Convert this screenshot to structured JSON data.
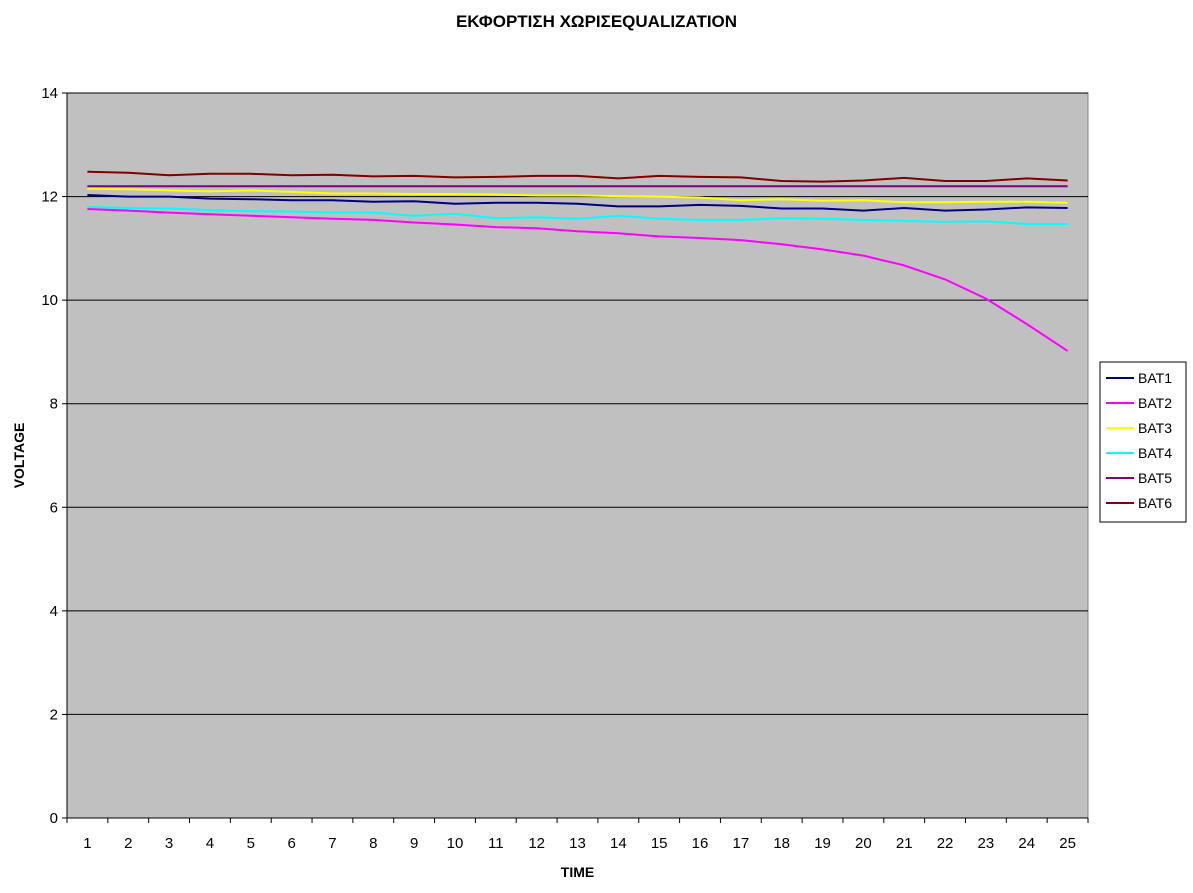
{
  "chart_data": {
    "type": "line",
    "title": "ΕΚΦΟΡΤΙΣΗ ΧΩΡΙΣEQUALIZATION",
    "xlabel": "TIME",
    "ylabel": "VOLTAGE",
    "ylim": [
      0,
      14
    ],
    "yticks": [
      0,
      2,
      4,
      6,
      8,
      10,
      12,
      14
    ],
    "categories": [
      "1",
      "2",
      "3",
      "4",
      "5",
      "6",
      "7",
      "8",
      "9",
      "10",
      "11",
      "12",
      "13",
      "14",
      "15",
      "16",
      "17",
      "18",
      "19",
      "20",
      "21",
      "22",
      "23",
      "24",
      "25"
    ],
    "grid": true,
    "legend_position": "right",
    "plot_background": "#c0c0c0",
    "series": [
      {
        "name": "BAT1",
        "color": "#000080",
        "values": [
          12.03,
          12.0,
          12.0,
          11.96,
          11.95,
          11.93,
          11.93,
          11.9,
          11.91,
          11.86,
          11.88,
          11.88,
          11.86,
          11.81,
          11.81,
          11.84,
          11.82,
          11.77,
          11.77,
          11.73,
          11.78,
          11.73,
          11.75,
          11.79,
          11.78
        ]
      },
      {
        "name": "BAT2",
        "color": "#ff00ff",
        "values": [
          11.76,
          11.73,
          11.69,
          11.66,
          11.63,
          11.6,
          11.57,
          11.55,
          11.5,
          11.46,
          11.41,
          11.39,
          11.33,
          11.29,
          11.23,
          11.2,
          11.16,
          11.08,
          10.98,
          10.86,
          10.67,
          10.4,
          10.03,
          9.54,
          9.02
        ]
      },
      {
        "name": "BAT3",
        "color": "#ffff00",
        "values": [
          12.15,
          12.14,
          12.12,
          12.1,
          12.12,
          12.09,
          12.06,
          12.06,
          12.05,
          12.05,
          12.04,
          12.02,
          12.02,
          12.01,
          12.0,
          11.98,
          11.93,
          11.95,
          11.92,
          11.93,
          11.89,
          11.89,
          11.9,
          11.9,
          11.88
        ]
      },
      {
        "name": "BAT4",
        "color": "#00ffff",
        "values": [
          11.8,
          11.78,
          11.77,
          11.74,
          11.72,
          11.71,
          11.69,
          11.69,
          11.63,
          11.67,
          11.58,
          11.6,
          11.57,
          11.63,
          11.57,
          11.55,
          11.55,
          11.58,
          11.57,
          11.55,
          11.53,
          11.51,
          11.52,
          11.47,
          11.47
        ]
      },
      {
        "name": "BAT5",
        "color": "#800080",
        "values": [
          12.2,
          12.2,
          12.2,
          12.2,
          12.2,
          12.2,
          12.2,
          12.2,
          12.2,
          12.2,
          12.2,
          12.2,
          12.2,
          12.2,
          12.2,
          12.2,
          12.2,
          12.2,
          12.2,
          12.2,
          12.2,
          12.2,
          12.2,
          12.2,
          12.2
        ]
      },
      {
        "name": "BAT6",
        "color": "#800000",
        "values": [
          12.48,
          12.46,
          12.41,
          12.44,
          12.44,
          12.41,
          12.42,
          12.39,
          12.4,
          12.37,
          12.38,
          12.4,
          12.4,
          12.35,
          12.4,
          12.38,
          12.37,
          12.3,
          12.29,
          12.31,
          12.36,
          12.3,
          12.3,
          12.35,
          12.31
        ]
      }
    ]
  }
}
